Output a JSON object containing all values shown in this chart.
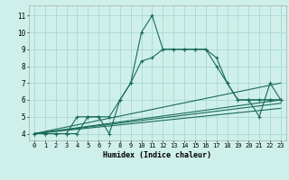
{
  "xlabel": "Humidex (Indice chaleur)",
  "bg_color": "#cff0ea",
  "grid_color": "#aad8d2",
  "line_color": "#1a6b5a",
  "xlim": [
    -0.5,
    23.5
  ],
  "ylim": [
    3.6,
    11.6
  ],
  "xticks": [
    0,
    1,
    2,
    3,
    4,
    5,
    6,
    7,
    8,
    9,
    10,
    11,
    12,
    13,
    14,
    15,
    16,
    17,
    18,
    19,
    20,
    21,
    22,
    23
  ],
  "yticks": [
    4,
    5,
    6,
    7,
    8,
    9,
    10,
    11
  ],
  "series": [
    {
      "x": [
        0,
        1,
        2,
        3,
        4,
        5,
        6,
        7,
        8,
        9,
        10,
        11,
        12,
        13,
        14,
        15,
        16,
        17,
        18,
        19,
        20,
        21,
        22,
        23
      ],
      "y": [
        4,
        4,
        4,
        4,
        4,
        5,
        5,
        4,
        6,
        7,
        10,
        11,
        9,
        9,
        9,
        9,
        9,
        8,
        7,
        6,
        6,
        6,
        6,
        6
      ],
      "marker": "+"
    },
    {
      "x": [
        0,
        23
      ],
      "y": [
        4,
        7
      ],
      "marker": null
    },
    {
      "x": [
        0,
        23
      ],
      "y": [
        4,
        6
      ],
      "marker": null
    },
    {
      "x": [
        0,
        23
      ],
      "y": [
        4,
        5.8
      ],
      "marker": null
    },
    {
      "x": [
        0,
        23
      ],
      "y": [
        4,
        5.5
      ],
      "marker": null
    },
    {
      "x": [
        0,
        1,
        2,
        3,
        4,
        5,
        6,
        7,
        8,
        9,
        10,
        11,
        12,
        13,
        14,
        15,
        16,
        17,
        18,
        19,
        20,
        21,
        22,
        23
      ],
      "y": [
        4,
        4,
        4,
        4,
        5,
        5,
        5,
        5,
        6,
        7,
        8.3,
        8.5,
        9,
        9,
        9,
        9,
        9,
        8.5,
        7,
        6,
        6,
        6,
        6,
        6
      ],
      "marker": "+"
    },
    {
      "x": [
        20,
        21,
        22,
        23
      ],
      "y": [
        6,
        5,
        7,
        6
      ],
      "marker": "+"
    }
  ]
}
